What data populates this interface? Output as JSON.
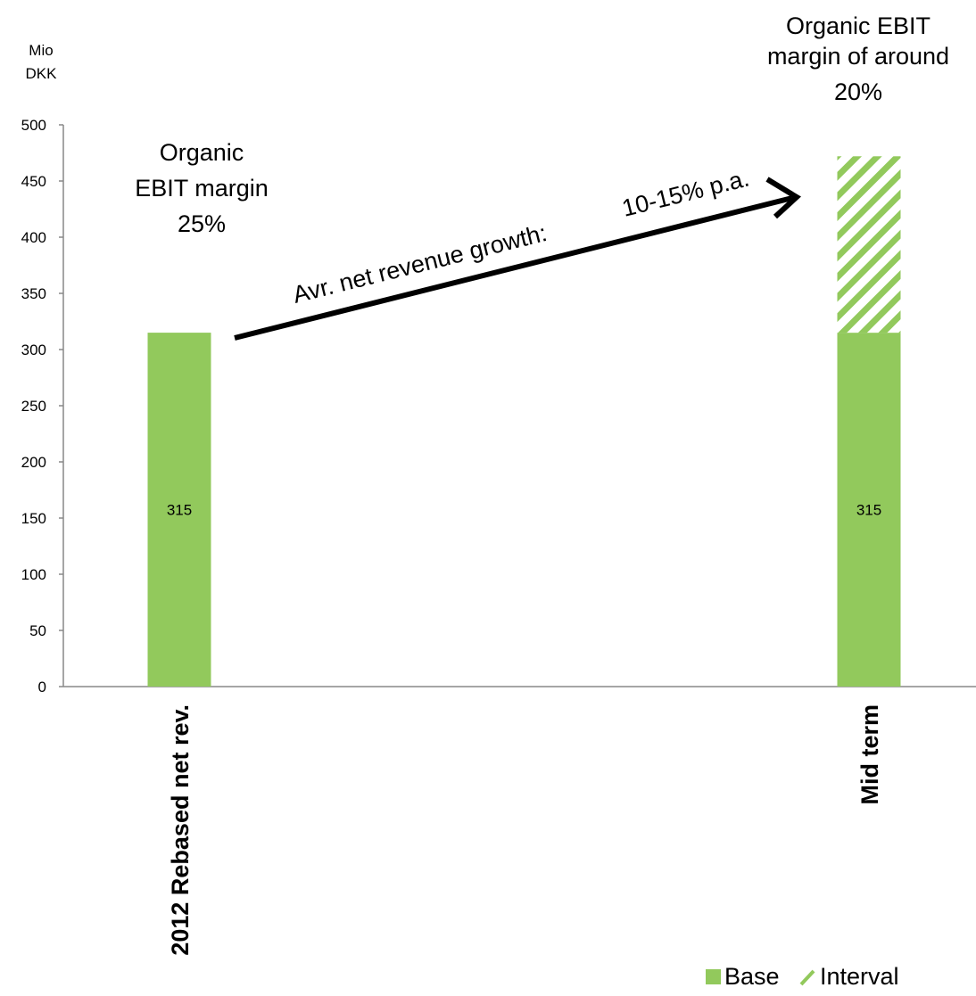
{
  "chart_data": {
    "type": "bar",
    "stacked": true,
    "categories": [
      "2012 Rebased net rev.",
      "Mid term"
    ],
    "series": [
      {
        "name": "Base",
        "values": [
          315,
          315
        ],
        "color": "#92c95c",
        "pattern": "solid",
        "data_labels": [
          "315",
          "315"
        ]
      },
      {
        "name": "Interval",
        "values": [
          0,
          157
        ],
        "color": "#92c95c",
        "pattern": "diagonal-hatch"
      }
    ],
    "yunit": [
      "Mio",
      "DKK"
    ],
    "ylim": [
      0,
      500
    ],
    "yticks": [
      0,
      50,
      100,
      150,
      200,
      250,
      300,
      350,
      400,
      450,
      500
    ],
    "grid": false,
    "legend_position": "bottom-right",
    "annotations": {
      "left_margin": [
        "Organic",
        "EBIT margin",
        "25%"
      ],
      "right_margin": [
        "Organic EBIT",
        "margin of around",
        "20%"
      ],
      "arrow_label_a": "Avr. net revenue growth:",
      "arrow_label_b": "10-15% p.a."
    }
  }
}
